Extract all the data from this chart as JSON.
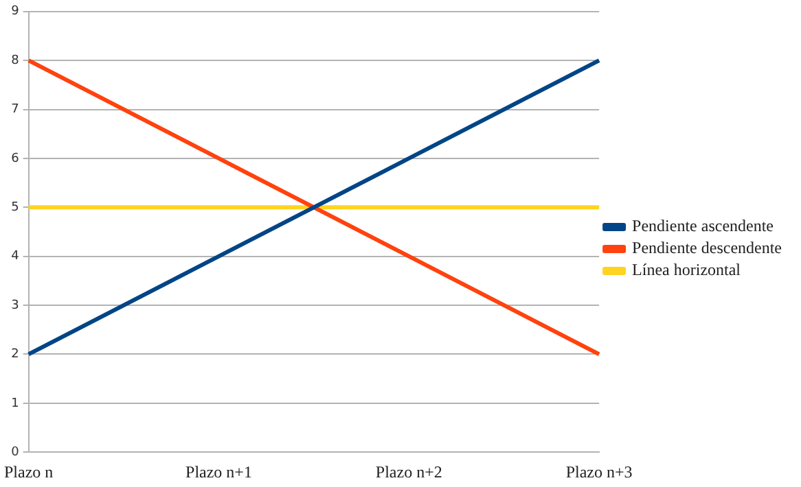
{
  "chart_data": {
    "type": "line",
    "categories": [
      "Plazo n",
      "Plazo n+1",
      "Plazo n+2",
      "Plazo n+3"
    ],
    "series": [
      {
        "name": "Pendiente ascendente",
        "color": "#004586",
        "values": [
          2,
          4,
          6,
          8
        ]
      },
      {
        "name": "Pendiente descendente",
        "color": "#ff420e",
        "values": [
          8,
          6,
          4,
          2
        ]
      },
      {
        "name": "Línea horizontal",
        "color": "#ffd320",
        "values": [
          5,
          5,
          5,
          5
        ]
      }
    ],
    "ylim": [
      0,
      9
    ],
    "yticks": [
      0,
      1,
      2,
      3,
      4,
      5,
      6,
      7,
      8,
      9
    ],
    "grid": "y",
    "legend": "right",
    "marker": "none",
    "line_style": "solid"
  }
}
